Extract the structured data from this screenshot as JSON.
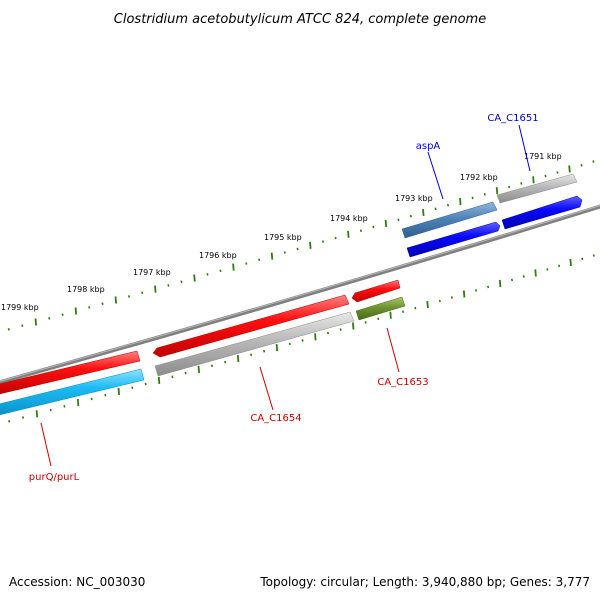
{
  "title": "Clostridium acetobutylicum ATCC 824, complete genome",
  "footer": {
    "accession": "Accession: NC_003030",
    "topology": "Topology: circular; Length: 3,940,880 bp; Genes: 3,777"
  },
  "kbp_labels": [
    "1791 kbp",
    "1792 kbp",
    "1793 kbp",
    "1794 kbp",
    "1795 kbp",
    "1796 kbp",
    "1797 kbp",
    "1798 kbp",
    "1799 kbp"
  ],
  "gene_labels": {
    "ca_c1651": "CA_C1651",
    "aspa": "aspA",
    "ca_c1653": "CA_C1653",
    "ca_c1654": "CA_C1654",
    "purq_purl": "purQ/purL"
  },
  "colors": {
    "backbone": "#808080",
    "tick": "#2e7d10",
    "red_gene": "#ee0000",
    "blue_gene": "#0000ee",
    "steel_blue_gene": "#4a7fb0",
    "cyan_gene": "#18b8f0",
    "olive_gene": "#6b8f25",
    "grey_gene": "#b0b0b0",
    "label_red": "#cc0000",
    "label_blue": "#0000cc"
  }
}
